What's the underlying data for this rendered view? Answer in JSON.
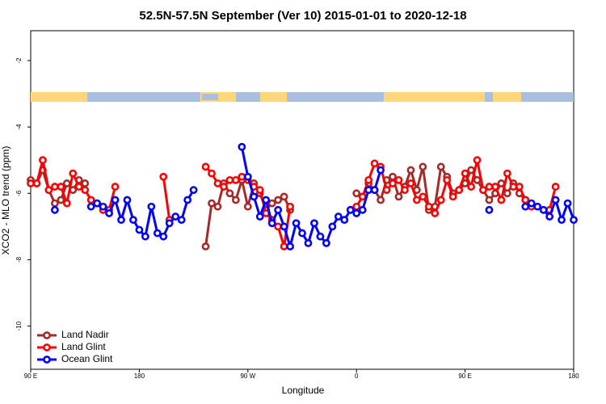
{
  "chart_data": {
    "type": "line",
    "title": "52.5N-57.5N September (Ver 10)   2015-01-01 to 2020-12-18",
    "x_label": "Longitude",
    "y_label": "XCO2 - MLO trend (ppm)",
    "x": [
      90,
      95,
      100,
      105,
      110,
      115,
      120,
      125,
      130,
      135,
      140,
      145,
      150,
      155,
      160,
      165,
      170,
      175,
      180,
      185,
      190,
      195,
      200,
      205,
      210,
      215,
      220,
      225,
      230,
      235,
      240,
      245,
      250,
      255,
      260,
      265,
      270,
      275,
      280,
      285,
      290,
      295,
      300,
      305,
      310,
      315,
      320,
      325,
      330,
      335,
      340,
      345,
      350,
      355,
      360,
      365,
      370,
      375,
      380,
      385,
      390,
      395,
      400,
      405,
      410,
      415,
      420,
      425,
      430,
      435,
      440,
      445,
      450,
      455,
      460,
      465,
      470,
      475,
      480,
      485,
      490,
      495,
      500,
      505,
      510,
      515,
      520,
      525,
      530,
      535,
      540
    ],
    "xlim": [
      90,
      540
    ],
    "xticks": [
      {
        "value": 90,
        "label": "90 E"
      },
      180,
      {
        "value": 270,
        "label": "90 W"
      },
      {
        "value": 360,
        "label": "0"
      },
      {
        "value": 450,
        "label": "90 E"
      },
      {
        "value": 540,
        "label": "180"
      }
    ],
    "ylim": [
      -11.3,
      -1.1
    ],
    "yticks": [
      -2,
      -4,
      -6,
      -8,
      -10
    ],
    "legend": "bottom-left",
    "series": [
      {
        "name": "Land Nadir",
        "color": "#a52a2a",
        "values": [
          -5.6,
          -5.7,
          -5.3,
          -5.9,
          -6.3,
          -6.2,
          -5.7,
          -5.9,
          -5.6,
          -5.7,
          null,
          null,
          null,
          null,
          null,
          null,
          null,
          null,
          null,
          null,
          null,
          null,
          null,
          null,
          null,
          null,
          null,
          null,
          null,
          -7.6,
          -6.3,
          -6.4,
          -5.7,
          -6.0,
          -6.2,
          -5.6,
          -6.4,
          -5.7,
          -6.0,
          -6.5,
          -6.3,
          -6.2,
          -6.1,
          -6.5,
          null,
          null,
          null,
          null,
          null,
          null,
          null,
          null,
          null,
          null,
          -6.0,
          -6.1,
          -5.7,
          -5.9,
          -6.2,
          -5.6,
          -5.5,
          -6.1,
          -5.8,
          -5.3,
          -5.9,
          -5.2,
          -6.5,
          -6.4,
          -5.2,
          -5.5,
          -6.0,
          -5.9,
          -5.7,
          -5.3,
          -5.6,
          -5.9,
          -6.2,
          -6.0,
          -5.7,
          -6.0,
          -5.7,
          -6.0,
          -6.2,
          null,
          null,
          null,
          null,
          null,
          null,
          null,
          null
        ]
      },
      {
        "name": "Land Glint",
        "color": "#ff0000",
        "values": [
          -5.7,
          -5.7,
          -5.0,
          -5.9,
          -5.8,
          -5.8,
          -6.3,
          -5.4,
          -5.8,
          -5.9,
          -6.2,
          -6.3,
          -6.5,
          -6.5,
          -5.8,
          null,
          null,
          null,
          null,
          null,
          null,
          null,
          -5.5,
          -6.8,
          null,
          null,
          null,
          null,
          null,
          -5.2,
          -5.4,
          -5.7,
          -5.8,
          -5.6,
          -5.6,
          -5.5,
          -5.6,
          -5.8,
          -5.9,
          -6.6,
          -6.8,
          -7.0,
          -7.6,
          -6.4,
          null,
          null,
          null,
          null,
          null,
          null,
          null,
          null,
          null,
          null,
          -6.4,
          -6.1,
          -5.6,
          -5.1,
          -5.2,
          -5.9,
          -5.7,
          -5.6,
          -5.9,
          -5.7,
          -6.2,
          -6.1,
          -6.4,
          -6.6,
          -6.2,
          -5.6,
          -6.1,
          -5.9,
          -5.4,
          -5.8,
          -5.0,
          -5.9,
          -5.8,
          -5.8,
          -6.2,
          -5.4,
          -5.8,
          -5.8,
          -6.2,
          -6.4,
          null,
          null,
          -6.5,
          -5.8,
          null,
          null,
          null
        ]
      },
      {
        "name": "Ocean Glint",
        "color": "#0000ff",
        "values": [
          null,
          null,
          null,
          null,
          -6.5,
          null,
          null,
          null,
          null,
          null,
          -6.4,
          -6.3,
          -6.4,
          -6.6,
          -6.2,
          -6.8,
          -6.2,
          -6.8,
          -7.1,
          -7.3,
          -6.4,
          -7.2,
          -7.3,
          -6.9,
          -6.7,
          -6.8,
          -6.2,
          -5.9,
          null,
          null,
          null,
          null,
          null,
          null,
          null,
          -4.6,
          -5.5,
          -6.1,
          -6.7,
          -6.2,
          -6.9,
          -6.5,
          -7.0,
          -7.6,
          -6.9,
          -7.2,
          -7.5,
          -6.9,
          -7.3,
          -7.5,
          -7.0,
          -6.7,
          -6.8,
          -6.5,
          -6.6,
          -6.5,
          -5.9,
          -5.9,
          -5.3,
          null,
          null,
          null,
          null,
          null,
          null,
          null,
          null,
          null,
          null,
          null,
          null,
          null,
          null,
          null,
          null,
          null,
          -6.5,
          null,
          null,
          null,
          null,
          null,
          -6.4,
          -6.3,
          -6.4,
          -6.5,
          -6.7,
          -6.2,
          -6.8,
          -6.3,
          -6.8
        ]
      }
    ]
  }
}
